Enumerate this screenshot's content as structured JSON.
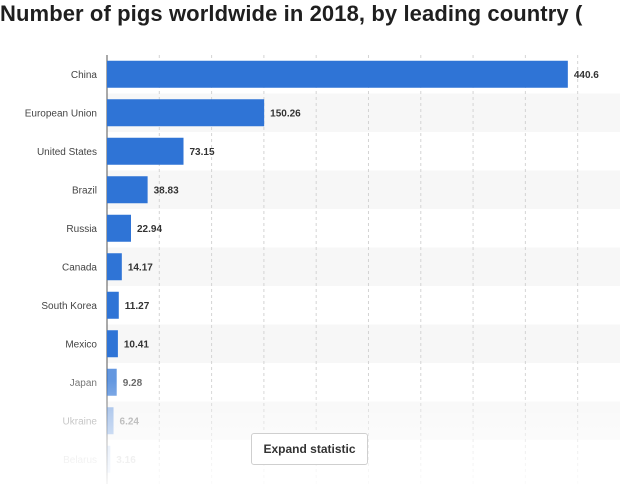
{
  "title": "Number of pigs worldwide in 2018, by leading country (",
  "expand_label": "Expand statistic",
  "chart_data": {
    "type": "bar",
    "orientation": "horizontal",
    "title": "Number of pigs worldwide in 2018, by leading country (",
    "xlabel": "",
    "ylabel": "",
    "xlim": [
      0,
      450
    ],
    "grid": true,
    "bar_color": "#2f74d6",
    "categories": [
      "China",
      "European Union",
      "United States",
      "Brazil",
      "Russia",
      "Canada",
      "South Korea",
      "Mexico",
      "Japan",
      "Ukraine",
      "Belarus"
    ],
    "values": [
      440.6,
      150.26,
      73.15,
      38.83,
      22.94,
      14.17,
      11.27,
      10.41,
      9.28,
      6.24,
      3.16
    ],
    "value_labels": [
      "440.6",
      "150.26",
      "73.15",
      "38.83",
      "22.94",
      "14.17",
      "11.27",
      "10.41",
      "9.28",
      "6.24",
      "3.16"
    ]
  }
}
